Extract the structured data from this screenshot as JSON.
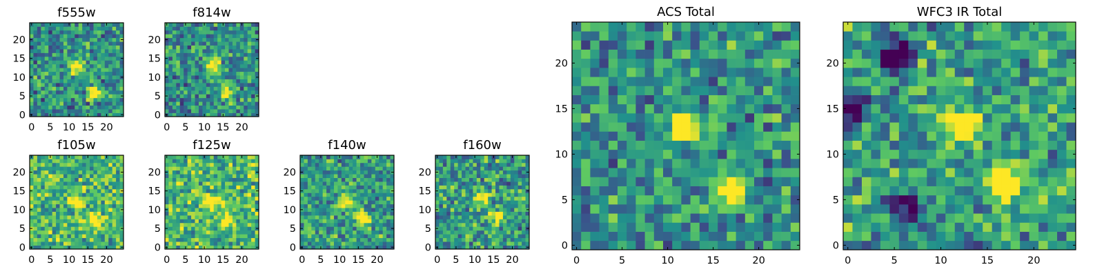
{
  "figure": {
    "colormap": "viridis",
    "colormap_stops": [
      "#440154",
      "#3b528b",
      "#21918c",
      "#5ec962",
      "#fde725"
    ]
  },
  "chart_data": [
    {
      "type": "heatmap",
      "title": "f555w",
      "xlabel": "",
      "ylabel": "",
      "grid_size": 25,
      "xlim": [
        -0.5,
        24.5
      ],
      "ylim": [
        -0.5,
        24.5
      ],
      "x_ticks": [
        0,
        5,
        10,
        15,
        20
      ],
      "y_ticks": [
        0,
        5,
        10,
        15,
        20
      ],
      "x_tick_labels": [
        "0",
        "5",
        "10",
        "15",
        "20"
      ],
      "y_tick_labels": [
        "0",
        "5",
        "10",
        "15",
        "20"
      ],
      "features": [
        {
          "x": 12,
          "y": 13,
          "intensity": 0.95
        },
        {
          "x": 17,
          "y": 6,
          "intensity": 1.0
        }
      ],
      "background_level": 0.5,
      "seed": 11
    },
    {
      "type": "heatmap",
      "title": "f814w",
      "xlabel": "",
      "ylabel": "",
      "grid_size": 25,
      "xlim": [
        -0.5,
        24.5
      ],
      "ylim": [
        -0.5,
        24.5
      ],
      "x_ticks": [
        0,
        5,
        10,
        15,
        20
      ],
      "y_ticks": [
        0,
        5,
        10,
        15,
        20
      ],
      "x_tick_labels": [
        "0",
        "5",
        "10",
        "15",
        "20"
      ],
      "y_tick_labels": [
        "0",
        "5",
        "10",
        "15",
        "20"
      ],
      "features": [
        {
          "x": 12,
          "y": 13,
          "intensity": 0.95
        },
        {
          "x": 16,
          "y": 6,
          "intensity": 0.95
        }
      ],
      "background_level": 0.5,
      "seed": 23
    },
    {
      "type": "heatmap",
      "title": "f105w",
      "xlabel": "",
      "ylabel": "",
      "grid_size": 25,
      "xlim": [
        -0.5,
        24.5
      ],
      "ylim": [
        -0.5,
        24.5
      ],
      "x_ticks": [
        0,
        5,
        10,
        15,
        20
      ],
      "y_ticks": [
        0,
        5,
        10,
        15,
        20
      ],
      "x_tick_labels": [
        "0",
        "5",
        "10",
        "15",
        "20"
      ],
      "y_tick_labels": [
        "0",
        "5",
        "10",
        "15",
        "20"
      ],
      "features": [
        {
          "x": 12,
          "y": 12,
          "intensity": 0.85
        },
        {
          "x": 17,
          "y": 7,
          "intensity": 0.85
        }
      ],
      "background_level": 0.66,
      "seed": 37
    },
    {
      "type": "heatmap",
      "title": "f125w",
      "xlabel": "",
      "ylabel": "",
      "grid_size": 25,
      "xlim": [
        -0.5,
        24.5
      ],
      "ylim": [
        -0.5,
        24.5
      ],
      "x_ticks": [
        0,
        5,
        10,
        15,
        20
      ],
      "y_ticks": [
        0,
        5,
        10,
        15,
        20
      ],
      "x_tick_labels": [
        "0",
        "5",
        "10",
        "15",
        "20"
      ],
      "y_tick_labels": [
        "0",
        "5",
        "10",
        "15",
        "20"
      ],
      "features": [
        {
          "x": 12,
          "y": 12,
          "intensity": 0.85
        },
        {
          "x": 16,
          "y": 7,
          "intensity": 0.85
        }
      ],
      "background_level": 0.66,
      "seed": 41
    },
    {
      "type": "heatmap",
      "title": "f140w",
      "xlabel": "",
      "ylabel": "",
      "grid_size": 25,
      "xlim": [
        -0.5,
        24.5
      ],
      "ylim": [
        -0.5,
        24.5
      ],
      "x_ticks": [
        0,
        5,
        10,
        15,
        20
      ],
      "y_ticks": [
        0,
        5,
        10,
        15,
        20
      ],
      "x_tick_labels": [
        "0",
        "5",
        "10",
        "15",
        "20"
      ],
      "y_tick_labels": [
        "0",
        "5",
        "10",
        "15",
        "20"
      ],
      "features": [
        {
          "x": 12,
          "y": 12,
          "intensity": 0.9
        },
        {
          "x": 16,
          "y": 8,
          "intensity": 0.95
        }
      ],
      "background_level": 0.55,
      "seed": 53
    },
    {
      "type": "heatmap",
      "title": "f160w",
      "xlabel": "",
      "ylabel": "",
      "grid_size": 25,
      "xlim": [
        -0.5,
        24.5
      ],
      "ylim": [
        -0.5,
        24.5
      ],
      "x_ticks": [
        0,
        5,
        10,
        15,
        20
      ],
      "y_ticks": [
        0,
        5,
        10,
        15,
        20
      ],
      "x_tick_labels": [
        "0",
        "5",
        "10",
        "15",
        "20"
      ],
      "y_tick_labels": [
        "0",
        "5",
        "10",
        "15",
        "20"
      ],
      "features": [
        {
          "x": 12,
          "y": 13,
          "intensity": 0.85
        },
        {
          "x": 16,
          "y": 8,
          "intensity": 0.95
        }
      ],
      "background_level": 0.55,
      "seed": 67
    },
    {
      "type": "heatmap",
      "title": "ACS Total",
      "xlabel": "",
      "ylabel": "",
      "grid_size": 25,
      "xlim": [
        -0.5,
        24.5
      ],
      "ylim": [
        -0.5,
        24.5
      ],
      "x_ticks": [
        0,
        5,
        10,
        15,
        20
      ],
      "y_ticks": [
        0,
        5,
        10,
        15,
        20
      ],
      "x_tick_labels": [
        "0",
        "5",
        "10",
        "15",
        "20"
      ],
      "y_tick_labels": [
        "0",
        "5",
        "10",
        "15",
        "20"
      ],
      "features": [
        {
          "x": 12,
          "y": 13,
          "intensity": 1.0
        },
        {
          "x": 17,
          "y": 6,
          "intensity": 1.0
        }
      ],
      "background_level": 0.5,
      "seed": 79
    },
    {
      "type": "heatmap",
      "title": "WFC3 IR Total",
      "xlabel": "",
      "ylabel": "",
      "grid_size": 25,
      "xlim": [
        -0.5,
        24.5
      ],
      "ylim": [
        -0.5,
        24.5
      ],
      "x_ticks": [
        0,
        5,
        10,
        15,
        20
      ],
      "y_ticks": [
        0,
        5,
        10,
        15,
        20
      ],
      "x_tick_labels": [
        "0",
        "5",
        "10",
        "15",
        "20"
      ],
      "y_tick_labels": [
        "0",
        "5",
        "10",
        "15",
        "20"
      ],
      "features": [
        {
          "x": 12,
          "y": 13,
          "intensity": 1.0
        },
        {
          "x": 17,
          "y": 7,
          "intensity": 1.0
        },
        {
          "x": 0,
          "y": 15,
          "intensity": -0.9
        },
        {
          "x": 5,
          "y": 21,
          "intensity": -0.9
        },
        {
          "x": 6,
          "y": 4,
          "intensity": -0.9
        }
      ],
      "background_level": 0.55,
      "seed": 97
    }
  ]
}
